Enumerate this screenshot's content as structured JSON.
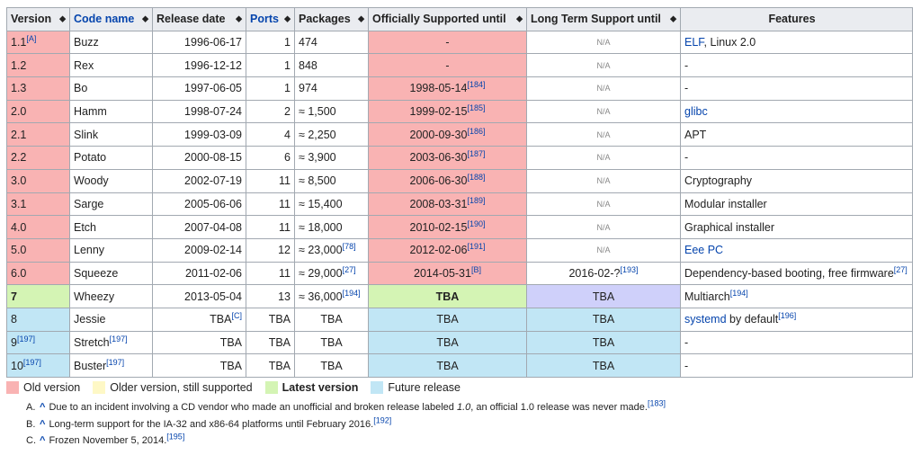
{
  "table": {
    "headers": [
      {
        "label": "Version",
        "link": false
      },
      {
        "label": "Code name",
        "link": true
      },
      {
        "label": "Release date",
        "link": false
      },
      {
        "label": "Ports",
        "link": true
      },
      {
        "label": "Packages",
        "link": false
      },
      {
        "label": "Officially Supported until",
        "link": false
      },
      {
        "label": "Long Term Support until",
        "link": false
      },
      {
        "label": "Features",
        "link": false
      }
    ],
    "sort_icon": "sort-arrows-icon",
    "rows": [
      {
        "version": "1.1",
        "version_sup": "[A]",
        "code": "Buzz",
        "code_sup": "",
        "release": "1996-06-17",
        "release_sup": "",
        "ports": "1",
        "packages": "474",
        "packages_sup": "",
        "supported": "-",
        "supported_sup": "",
        "lts": "N/A",
        "features": [
          {
            "text": "ELF",
            "link": true
          },
          {
            "text": ", Linux 2.0",
            "link": false
          }
        ],
        "features_sup": "",
        "status": "old",
        "sup_color": "old",
        "lts_color": "grey"
      },
      {
        "version": "1.2",
        "version_sup": "",
        "code": "Rex",
        "code_sup": "",
        "release": "1996-12-12",
        "release_sup": "",
        "ports": "1",
        "packages": "848",
        "packages_sup": "",
        "supported": "-",
        "supported_sup": "",
        "lts": "N/A",
        "features": [
          {
            "text": "-",
            "link": false
          }
        ],
        "features_sup": "",
        "status": "old",
        "sup_color": "old",
        "lts_color": "grey"
      },
      {
        "version": "1.3",
        "version_sup": "",
        "code": "Bo",
        "code_sup": "",
        "release": "1997-06-05",
        "release_sup": "",
        "ports": "1",
        "packages": "974",
        "packages_sup": "",
        "supported": "1998-05-14",
        "supported_sup": "[184]",
        "lts": "N/A",
        "features": [
          {
            "text": "-",
            "link": false
          }
        ],
        "features_sup": "",
        "status": "old",
        "sup_color": "old",
        "lts_color": "grey"
      },
      {
        "version": "2.0",
        "version_sup": "",
        "code": "Hamm",
        "code_sup": "",
        "release": "1998-07-24",
        "release_sup": "",
        "ports": "2",
        "packages": "≈ 1,500",
        "packages_sup": "",
        "supported": "1999-02-15",
        "supported_sup": "[185]",
        "lts": "N/A",
        "features": [
          {
            "text": "glibc",
            "link": true
          }
        ],
        "features_sup": "",
        "status": "old",
        "sup_color": "old",
        "lts_color": "grey"
      },
      {
        "version": "2.1",
        "version_sup": "",
        "code": "Slink",
        "code_sup": "",
        "release": "1999-03-09",
        "release_sup": "",
        "ports": "4",
        "packages": "≈ 2,250",
        "packages_sup": "",
        "supported": "2000-09-30",
        "supported_sup": "[186]",
        "lts": "N/A",
        "features": [
          {
            "text": "APT",
            "link": false
          }
        ],
        "features_sup": "",
        "status": "old",
        "sup_color": "old",
        "lts_color": "grey"
      },
      {
        "version": "2.2",
        "version_sup": "",
        "code": "Potato",
        "code_sup": "",
        "release": "2000-08-15",
        "release_sup": "",
        "ports": "6",
        "packages": "≈ 3,900",
        "packages_sup": "",
        "supported": "2003-06-30",
        "supported_sup": "[187]",
        "lts": "N/A",
        "features": [
          {
            "text": "-",
            "link": false
          }
        ],
        "features_sup": "",
        "status": "old",
        "sup_color": "old",
        "lts_color": "grey"
      },
      {
        "version": "3.0",
        "version_sup": "",
        "code": "Woody",
        "code_sup": "",
        "release": "2002-07-19",
        "release_sup": "",
        "ports": "11",
        "packages": "≈ 8,500",
        "packages_sup": "",
        "supported": "2006-06-30",
        "supported_sup": "[188]",
        "lts": "N/A",
        "features": [
          {
            "text": "Cryptography",
            "link": false
          }
        ],
        "features_sup": "",
        "status": "old",
        "sup_color": "old",
        "lts_color": "grey"
      },
      {
        "version": "3.1",
        "version_sup": "",
        "code": "Sarge",
        "code_sup": "",
        "release": "2005-06-06",
        "release_sup": "",
        "ports": "11",
        "packages": "≈ 15,400",
        "packages_sup": "",
        "supported": "2008-03-31",
        "supported_sup": "[189]",
        "lts": "N/A",
        "features": [
          {
            "text": "Modular installer",
            "link": false
          }
        ],
        "features_sup": "",
        "status": "old",
        "sup_color": "old",
        "lts_color": "grey"
      },
      {
        "version": "4.0",
        "version_sup": "",
        "code": "Etch",
        "code_sup": "",
        "release": "2007-04-08",
        "release_sup": "",
        "ports": "11",
        "packages": "≈ 18,000",
        "packages_sup": "",
        "supported": "2010-02-15",
        "supported_sup": "[190]",
        "lts": "N/A",
        "features": [
          {
            "text": "Graphical installer",
            "link": false
          }
        ],
        "features_sup": "",
        "status": "old",
        "sup_color": "old",
        "lts_color": "grey"
      },
      {
        "version": "5.0",
        "version_sup": "",
        "code": "Lenny",
        "code_sup": "",
        "release": "2009-02-14",
        "release_sup": "",
        "ports": "12",
        "packages": "≈ 23,000",
        "packages_sup": "[78]",
        "supported": "2012-02-06",
        "supported_sup": "[191]",
        "lts": "N/A",
        "features": [
          {
            "text": "Eee PC",
            "link": true
          }
        ],
        "features_sup": "",
        "status": "old",
        "sup_color": "old",
        "lts_color": "grey"
      },
      {
        "version": "6.0",
        "version_sup": "",
        "code": "Squeeze",
        "code_sup": "",
        "release": "2011-02-06",
        "release_sup": "",
        "ports": "11",
        "packages": "≈ 29,000",
        "packages_sup": "[27]",
        "supported": "2014-05-31",
        "supported_sup": "[B]",
        "lts": "2016-02-?",
        "lts_sup": "[193]",
        "features": [
          {
            "text": "Dependency-based booting, free firmware",
            "link": false
          }
        ],
        "features_sup": "[27]",
        "status": "old",
        "sup_color": "old",
        "lts_color": "white"
      },
      {
        "version": "7",
        "version_sup": "",
        "code": "Wheezy",
        "code_sup": "",
        "release": "2013-05-04",
        "release_sup": "",
        "ports": "13",
        "packages": "≈ 36,000",
        "packages_sup": "[194]",
        "supported": "TBA",
        "supported_sup": "",
        "lts": "TBA",
        "features": [
          {
            "text": "Multiarch",
            "link": false
          }
        ],
        "features_sup": "[194]",
        "status": "latest",
        "sup_color": "latest",
        "lts_color": "lav"
      },
      {
        "version": "8",
        "version_sup": "",
        "code": "Jessie",
        "code_sup": "",
        "release": "TBA",
        "release_sup": "[C]",
        "ports": "TBA",
        "packages": "TBA",
        "packages_sup": "",
        "supported": "TBA",
        "supported_sup": "",
        "lts": "TBA",
        "features": [
          {
            "text": "systemd",
            "link": true
          },
          {
            "text": " by default",
            "link": false
          }
        ],
        "features_sup": "[196]",
        "status": "future",
        "sup_color": "future",
        "lts_color": "future"
      },
      {
        "version": "9",
        "version_sup": "[197]",
        "code": "Stretch",
        "code_sup": "[197]",
        "release": "TBA",
        "release_sup": "",
        "ports": "TBA",
        "packages": "TBA",
        "packages_sup": "",
        "supported": "TBA",
        "supported_sup": "",
        "lts": "TBA",
        "features": [
          {
            "text": "-",
            "link": false
          }
        ],
        "features_sup": "",
        "status": "future",
        "sup_color": "future",
        "lts_color": "future"
      },
      {
        "version": "10",
        "version_sup": "[197]",
        "code": "Buster",
        "code_sup": "[197]",
        "release": "TBA",
        "release_sup": "",
        "ports": "TBA",
        "packages": "TBA",
        "packages_sup": "",
        "supported": "TBA",
        "supported_sup": "",
        "lts": "TBA",
        "features": [
          {
            "text": "-",
            "link": false
          }
        ],
        "features_sup": "",
        "status": "future",
        "sup_color": "future",
        "lts_color": "future"
      }
    ]
  },
  "colors": {
    "old": "#f9b3b3",
    "oldsup": "#fef8c6",
    "latest": "#d4f4b4",
    "future": "#c1e6f5",
    "lav": "#cfd0fa",
    "grey": "#eaecf0",
    "white": "#ffffff"
  },
  "legend": [
    {
      "label": "Old version",
      "color": "old",
      "bold": false
    },
    {
      "label": "Older version, still supported",
      "color": "oldsup",
      "bold": false
    },
    {
      "label": "Latest version",
      "color": "latest",
      "bold": true
    },
    {
      "label": "Future release",
      "color": "future",
      "bold": false
    }
  ],
  "notes": [
    {
      "idx": "A.",
      "caret": "^",
      "parts": [
        {
          "text": "Due to an incident involving a CD vendor who made an unofficial and broken release labeled ",
          "italic": false
        },
        {
          "text": "1.0",
          "italic": true
        },
        {
          "text": ", an official 1.0 release was never made.",
          "italic": false
        }
      ],
      "sup": "[183]"
    },
    {
      "idx": "B.",
      "caret": "^",
      "parts": [
        {
          "text": "Long-term support for the IA-32 and x86-64 platforms until February 2016.",
          "italic": false
        }
      ],
      "sup": "[192]"
    },
    {
      "idx": "C.",
      "caret": "^",
      "parts": [
        {
          "text": "Frozen November 5, 2014.",
          "italic": false
        }
      ],
      "sup": "[195]"
    }
  ]
}
